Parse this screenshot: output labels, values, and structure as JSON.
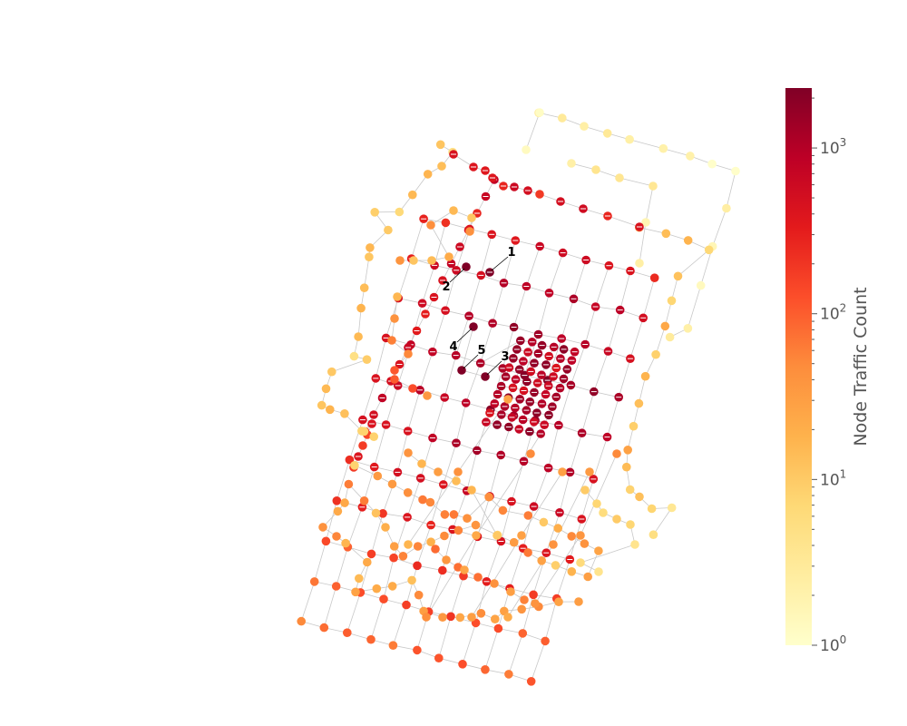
{
  "chart_data": {
    "type": "network",
    "title": "",
    "colorbar": {
      "label": "Node Traffic Count",
      "scale": "log",
      "range": [
        1,
        2300
      ],
      "colormap": [
        "#ffffcc",
        "#ffeda0",
        "#fed976",
        "#feb24c",
        "#fd8d3c",
        "#fc4e2a",
        "#e31a1c",
        "#bd0026",
        "#800026"
      ],
      "ticks": [
        {
          "value": 1,
          "base": "10",
          "exp": "0"
        },
        {
          "value": 10,
          "base": "10",
          "exp": "1"
        },
        {
          "value": 100,
          "base": "10",
          "exp": "2"
        },
        {
          "value": 1000,
          "base": "10",
          "exp": "3"
        }
      ]
    },
    "annotations": [
      {
        "label": "1",
        "rank": 1
      },
      {
        "label": "2",
        "rank": 2
      },
      {
        "label": "3",
        "rank": 3
      },
      {
        "label": "4",
        "rank": 4
      },
      {
        "label": "5",
        "rank": 5
      }
    ],
    "edge_color": "#c8c8c8",
    "annotated_node_color": "#800026",
    "legend": "none",
    "grid": false
  }
}
